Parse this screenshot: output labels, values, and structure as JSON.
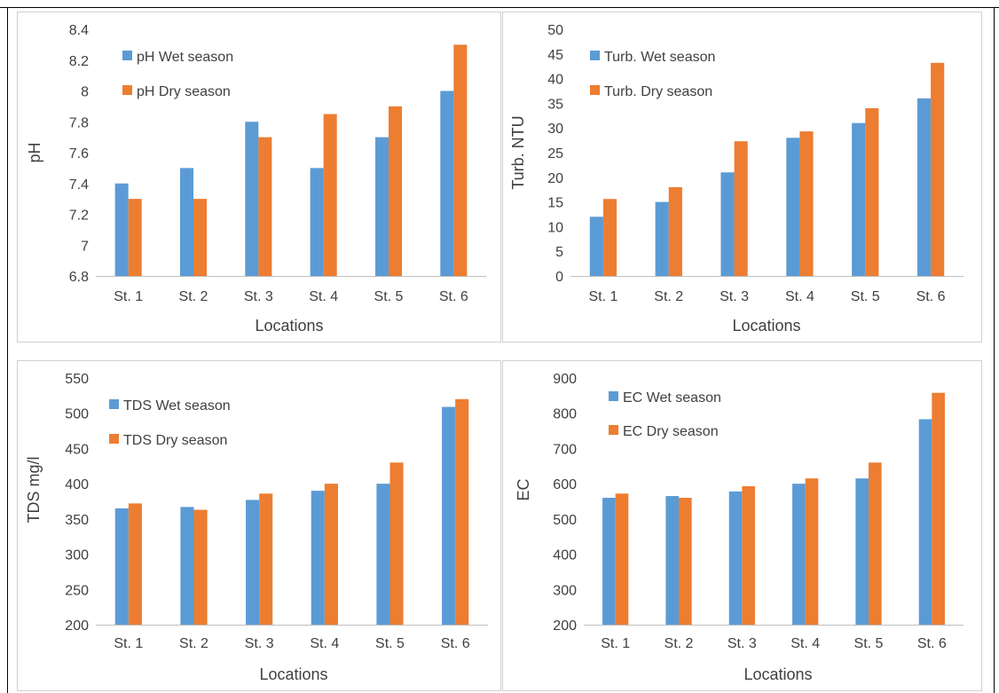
{
  "colors": {
    "wet": "#5b9bd5",
    "dry": "#ed7d31"
  },
  "chart_data": [
    {
      "type": "bar",
      "categories": [
        "St. 1",
        "St. 2",
        "St. 3",
        "St. 4",
        "St. 5",
        "St. 6"
      ],
      "series": [
        {
          "name": "pH Wet season",
          "values": [
            7.4,
            7.5,
            7.8,
            7.5,
            7.7,
            8.0
          ]
        },
        {
          "name": "pH Dry season",
          "values": [
            7.3,
            7.3,
            7.7,
            7.85,
            7.9,
            8.3
          ]
        }
      ],
      "xlabel": "Locations",
      "ylabel": "pH",
      "ylim": [
        6.8,
        8.4
      ],
      "yticks": [
        "6.8",
        "7",
        "7.2",
        "7.4",
        "7.6",
        "7.8",
        "8",
        "8.2",
        "8.4"
      ],
      "legend_position": "top-left",
      "grid": false
    },
    {
      "type": "bar",
      "categories": [
        "St. 1",
        "St. 2",
        "St. 3",
        "St. 4",
        "St. 5",
        "St. 6"
      ],
      "series": [
        {
          "name": "Turb. Wet season",
          "values": [
            12,
            15,
            21,
            28,
            31,
            36
          ]
        },
        {
          "name": "Turb. Dry season",
          "values": [
            15.6,
            18,
            27.3,
            29.3,
            34,
            43.2
          ]
        }
      ],
      "xlabel": "Locations",
      "ylabel": "Turb. NTU",
      "ylim": [
        0,
        50
      ],
      "yticks": [
        "0",
        "5",
        "10",
        "15",
        "20",
        "25",
        "30",
        "35",
        "40",
        "45",
        "50"
      ],
      "legend_position": "top-left",
      "grid": false
    },
    {
      "type": "bar",
      "categories": [
        "St. 1",
        "St. 2",
        "St. 3",
        "St. 4",
        "St. 5",
        "St. 6"
      ],
      "series": [
        {
          "name": "TDS Wet season",
          "values": [
            365,
            367,
            377,
            390,
            400,
            509
          ]
        },
        {
          "name": "TDS Dry season",
          "values": [
            372,
            363,
            386,
            400,
            430,
            520
          ]
        }
      ],
      "xlabel": "Locations",
      "ylabel": "TDS  mg/l",
      "ylim": [
        200,
        550
      ],
      "yticks": [
        "200",
        "250",
        "300",
        "350",
        "400",
        "450",
        "500",
        "550"
      ],
      "legend_position": "top-left",
      "grid": false
    },
    {
      "type": "bar",
      "categories": [
        "St. 1",
        "St. 2",
        "St. 3",
        "St. 4",
        "St. 5",
        "St. 6"
      ],
      "series": [
        {
          "name": "EC Wet season",
          "values": [
            560,
            565,
            578,
            600,
            615,
            783
          ]
        },
        {
          "name": "EC Dry season",
          "values": [
            572,
            560,
            593,
            615,
            660,
            858
          ]
        }
      ],
      "xlabel": "Locations",
      "ylabel": "EC",
      "ylim": [
        200,
        900
      ],
      "yticks": [
        "200",
        "300",
        "400",
        "500",
        "600",
        "700",
        "800",
        "900"
      ],
      "legend_position": "top-left",
      "grid": false
    }
  ]
}
